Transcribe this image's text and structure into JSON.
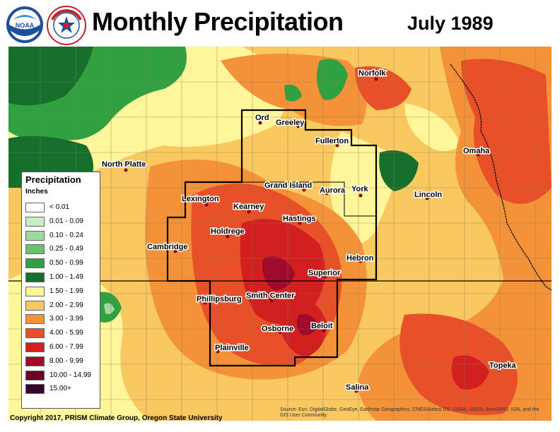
{
  "header": {
    "title": "Monthly Precipitation",
    "date": "July 1989"
  },
  "logos": {
    "noaa_text": "NOAA",
    "nws_text": "NATIONAL WEATHER SERVICE"
  },
  "legend": {
    "title": "Precipitation",
    "units": "Inches",
    "classes": [
      {
        "label": "< 0.01",
        "color": "#ffffff"
      },
      {
        "label": "0.01 - 0.09",
        "color": "#c8ecc8"
      },
      {
        "label": "0.10 - 0.24",
        "color": "#a0d8a0"
      },
      {
        "label": "0.25 - 0.49",
        "color": "#6cc26c"
      },
      {
        "label": "0.50 - 0.99",
        "color": "#30a040"
      },
      {
        "label": "1.00 - 1.49",
        "color": "#16702c"
      },
      {
        "label": "1.50 - 1.99",
        "color": "#fff59a"
      },
      {
        "label": "2.00 - 2.99",
        "color": "#f9c860"
      },
      {
        "label": "3.00 - 3.99",
        "color": "#f4923a"
      },
      {
        "label": "4.00 - 5.99",
        "color": "#e8502a"
      },
      {
        "label": "6.00 - 7.99",
        "color": "#d22020"
      },
      {
        "label": "8.00 - 9.99",
        "color": "#a00a2c"
      },
      {
        "label": "10.00 - 14.99",
        "color": "#6a0426"
      },
      {
        "label": "15.00+",
        "color": "#36062e"
      }
    ]
  },
  "cities": [
    {
      "name": "Norfolk"
    },
    {
      "name": "Ord"
    },
    {
      "name": "Greeley"
    },
    {
      "name": "Fullerton"
    },
    {
      "name": "Omaha"
    },
    {
      "name": "North Platte"
    },
    {
      "name": "Grand Island"
    },
    {
      "name": "Aurora"
    },
    {
      "name": "York"
    },
    {
      "name": "Lincoln"
    },
    {
      "name": "Lexington"
    },
    {
      "name": "Kearney"
    },
    {
      "name": "Hastings"
    },
    {
      "name": "Holdrege"
    },
    {
      "name": "Cambridge"
    },
    {
      "name": "Hebron"
    },
    {
      "name": "Superior"
    },
    {
      "name": "Phillipsburg"
    },
    {
      "name": "Smith Center"
    },
    {
      "name": "Osborne"
    },
    {
      "name": "Beloit"
    },
    {
      "name": "Plainville"
    },
    {
      "name": "Topeka"
    },
    {
      "name": "Salina"
    }
  ],
  "footer": {
    "copyright": "Copyright 2017, PRISM Climate Group, Oregon State University",
    "source": "Source: Esri, DigitalGlobe, GeoEye, Earthstar Geographics, CNES/Airbus DS, USDA, USGS, AeroGRID, IGN, and the GIS User Community"
  }
}
